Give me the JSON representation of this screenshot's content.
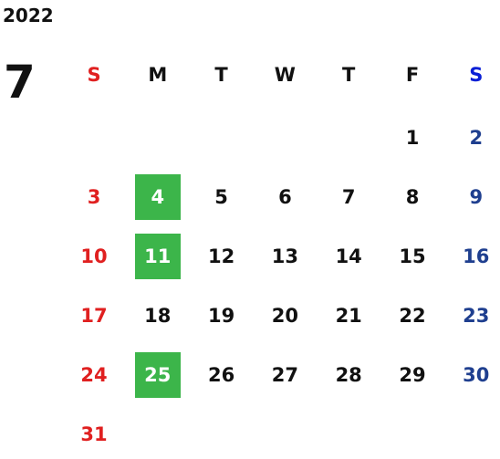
{
  "calendar": {
    "year": "2022",
    "month": "7",
    "weekdays": [
      "S",
      "M",
      "T",
      "W",
      "T",
      "F",
      "S"
    ],
    "weeks": [
      [
        null,
        null,
        null,
        null,
        null,
        1,
        2
      ],
      [
        3,
        4,
        5,
        6,
        7,
        8,
        9
      ],
      [
        10,
        11,
        12,
        13,
        14,
        15,
        16
      ],
      [
        17,
        18,
        19,
        20,
        21,
        22,
        23
      ],
      [
        24,
        25,
        26,
        27,
        28,
        29,
        30
      ],
      [
        31
      ]
    ],
    "highlighted_days": [
      4,
      11,
      25
    ],
    "colors": {
      "weekday": "#111111",
      "sunday": "#e02020",
      "saturday": "#1f3f8f",
      "saturday_header": "#0a1fd6",
      "highlight": "#3cb54a",
      "highlight_text": "#ffffff"
    }
  }
}
